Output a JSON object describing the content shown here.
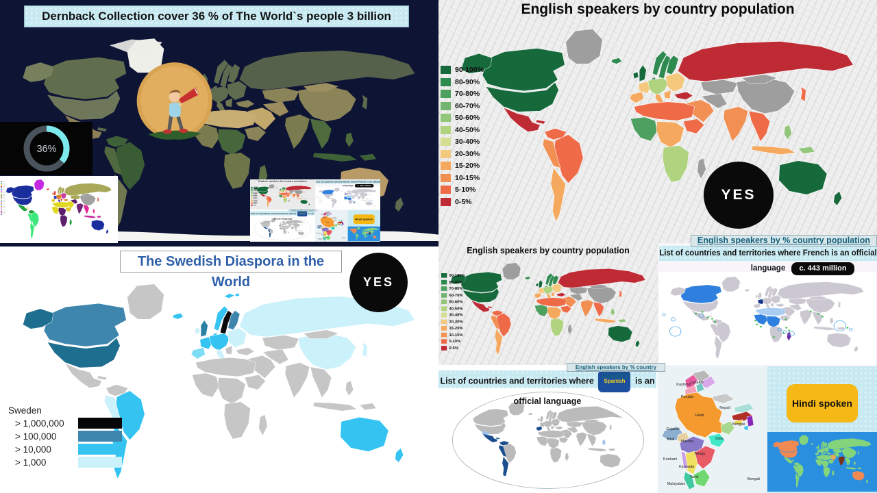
{
  "dernback": {
    "title": "Dernback Collection cover 36 % of The World`s people 3 billion",
    "donut_label": "36%",
    "donut_percent": 36
  },
  "swedish": {
    "title": "The Swedish Diaspora in the World",
    "yes": "YES",
    "legend_title": "Sweden",
    "legend": [
      {
        "label": "> 1,000,000",
        "color": "#060606"
      },
      {
        "label": "> 100,000",
        "color": "#3E86AE"
      },
      {
        "label": "> 10,000",
        "color": "#35C4F2"
      },
      {
        "label": "> 1,000",
        "color": "#CBF1FB"
      }
    ]
  },
  "english": {
    "title": "English speakers by country population",
    "yes": "YES",
    "link": "English speakers by % country population",
    "legend": [
      {
        "label": "90-100%",
        "color": "#15693B"
      },
      {
        "label": "80-90%",
        "color": "#2E8B50"
      },
      {
        "label": "70-80%",
        "color": "#4DA05F"
      },
      {
        "label": "60-70%",
        "color": "#73B56F"
      },
      {
        "label": "50-60%",
        "color": "#92C67B"
      },
      {
        "label": "40-50%",
        "color": "#AFD37F"
      },
      {
        "label": "30-40%",
        "color": "#D5DE92"
      },
      {
        "label": "20-30%",
        "color": "#F4C87D"
      },
      {
        "label": "15-20%",
        "color": "#F5A95E"
      },
      {
        "label": "10-15%",
        "color": "#F28F53"
      },
      {
        "label": "5-10%",
        "color": "#EF6A47"
      },
      {
        "label": "0-5%",
        "color": "#BF2B35"
      }
    ]
  },
  "english_small": {
    "title": "English speakers by country population",
    "link": "English speakers by % country population"
  },
  "french": {
    "title": "List of countries and territories where French is an official language",
    "badge": "c. 443 million"
  },
  "spanish": {
    "title_prefix": "List of countries and territories where",
    "chip": "Spanish",
    "title_suffix": "is an official language"
  },
  "india": {
    "labels": [
      "Ladakhi",
      "Kashmiri",
      "Punjabi",
      "Hindi",
      "Nepali",
      "Bengali",
      "Gujarati",
      "Bhili",
      "Marathi",
      "Odia",
      "Telugu",
      "Konkani",
      "Kannada",
      "Tamil",
      "Malayalam",
      "Bengali"
    ]
  },
  "hindi": {
    "label": "Hindi spoken"
  },
  "political_swatches": [
    "#7030A0",
    "#00B050",
    "#FFC000",
    "#C00000",
    "#2E3192",
    "#00B0F0",
    "#FF00FF",
    "#92D050",
    "#BF8F00",
    "#1F9E3C",
    "#E03C28",
    "#A8A858",
    "#3CE87C",
    "#C428E0",
    "#E08428",
    "#2838C8",
    "#E0C820",
    "#C83C9E",
    "#A0A0A0",
    "#702878",
    "#E02898",
    "#1B2E9E"
  ],
  "maps": {
    "satellite": {
      "stroke": "none",
      "default": "#5E6B4E",
      "regions": {
        "alaska": "#77805C",
        "canada": "#606E4E",
        "greenland": "#EFEFEA",
        "usa": "#6E775A",
        "mexico": "#8C7E57",
        "cuba": "#5E6B4E",
        "sa_north": "#3E6138",
        "brazil": "#3A5C35",
        "sa_west": "#50693F",
        "sa_south": "#707952",
        "iceland": "#D8D8D2",
        "iberia": "#6E7552",
        "italy": "#6E7552",
        "balkans": "#6E7552",
        "turkey": "#8C8459",
        "russia": "#55614A",
        "kazakhstan": "#8C8459",
        "middle_east": "#C2A86B",
        "iran": "#9C8C5E",
        "china": "#8C8459",
        "mongolia": "#9C9062",
        "india": "#7A7B4E",
        "se_asia": "#4E6B3E",
        "philippines": "#4E6B3E",
        "indonesia": "#3E6138",
        "png": "#3E6138",
        "north_africa": "#C9AE74",
        "west_africa": "#7A7B4E",
        "central_africa": "#47663B",
        "east_africa": "#8C8459",
        "south_africa": "#6E7548",
        "madagascar": "#5E7045",
        "australia": "#B89A66",
        "antarctica": "#F4F4F0"
      }
    },
    "swedish": {
      "ocean": "#FFFFFF",
      "default": "#C6C6C6",
      "stroke": "#FFFFFF",
      "regions": {
        "sweden": "#0A0A0A",
        "alaska": "#1E6E90",
        "usa": "#1E6E90",
        "canada": "#3E86AE",
        "uk": "#2A80A4",
        "finland": "#3E86AE",
        "norway": "#35C4F2",
        "denmark": "#35C4F2",
        "iceland": "#35C4F2",
        "france": "#35C4F2",
        "central_europe": "#35C4F2",
        "iberia": "#7FDCF6",
        "italy": "#CBF1FB",
        "east_europe": "#CBF1FB",
        "russia": "#CBF1FB",
        "china": "#CBF1FB",
        "japan": "#CBF1FB",
        "ireland": "#CBF1FB",
        "brazil": "#35C4F2",
        "sa_south": "#35C4F2",
        "sa_west": "#CBF1FB",
        "australia": "#35C4F2",
        "new_zealand": "#35C4F2"
      }
    },
    "english": {
      "default": "#9E9E9E",
      "stroke": "#FFFFFF",
      "regions": {
        "canada": "#15693B",
        "usa": "#15693B",
        "alaska": "#15693B",
        "uk": "#15693B",
        "ireland": "#15693B",
        "australia": "#15693B",
        "new_zealand": "#15693B",
        "iceland": "#2E8B50",
        "norway": "#2E8B50",
        "sweden": "#2E8B50",
        "denmark": "#2E8B50",
        "finland": "#2E8B50",
        "central_europe": "#AFD37F",
        "france": "#F4C87D",
        "iberia": "#F5A95E",
        "italy": "#F5A95E",
        "east_europe": "#F4C87D",
        "balkans": "#F5A95E",
        "turkey": "#BF2B35",
        "russia": "#BF2B35",
        "japan": "#EF6A47",
        "india": "#F28F53",
        "se_asia": "#EF6A47",
        "philippines": "#92C67B",
        "indonesia": "#F5A95E",
        "png": "#92C67B",
        "middle_east": "#F28F53",
        "north_africa": "#EF6A47",
        "west_africa": "#4DA05F",
        "central_africa": "#F5A95E",
        "east_africa": "#EF6A47",
        "south_africa": "#AFD37F",
        "mexico": "#BF2B35",
        "cuba": "#BF2B35",
        "sa_north": "#EF6A47",
        "brazil": "#EF6A47",
        "sa_west": "#F28F53",
        "sa_south": "#F5A95E"
      }
    },
    "french": {
      "ocean": "#FFFFFF",
      "default": "#CCC8D2",
      "stroke": "#FFFFFF",
      "regions": {
        "canada": "#2F7FDE",
        "france": "#14388C",
        "north_africa": "#A9CCF2",
        "west_africa": "#2F7FDE",
        "central_africa": "#2F7FDE",
        "madagascar": "#6B2FA0"
      }
    },
    "spanish": {
      "frame": "ellipse",
      "default": "#BBBBBB",
      "stroke": "#FFFFFF",
      "regions": {
        "iberia": "#1C4E8E",
        "mexico": "#1C4E8E",
        "cuba": "#1C4E8E",
        "sa_north": "#1C4E8E",
        "sa_west": "#1C4E8E",
        "sa_south": "#1C4E8E",
        "philippines": "#9FC2EA"
      }
    },
    "hindi_world": {
      "ocean": "#2B8FE0",
      "default": "#84D47C",
      "stroke": "none",
      "regions": {
        "usa": "#F08A52",
        "canada": "#F08A52",
        "alaska": "#F08A52",
        "australia": "#F08A52",
        "india": "#7A2F16",
        "middle_east": "#E8A85A"
      }
    },
    "political": {
      "ocean": "#FFFFFF",
      "default": "#C8C8C8",
      "stroke": "#FFFFFF",
      "regions": {
        "alaska": "#1B2E9E",
        "canada": "#1B2E9E",
        "usa": "#1B2E9E",
        "greenland": "#C428E0",
        "mexico": "#1F9E3C",
        "cuba": "#E0C820",
        "sa_north": "#1F9E3C",
        "brazil": "#3CE87C",
        "sa_west": "#3CE87C",
        "sa_south": "#3CE87C",
        "iceland": "#E03C28",
        "ireland": "#E03C28",
        "uk": "#E03C28",
        "norway": "#A8A858",
        "sweden": "#A8A858",
        "finland": "#A8A858",
        "denmark": "#E08428",
        "france": "#2838C8",
        "iberia": "#E0C820",
        "central_europe": "#E08428",
        "italy": "#3C28C8",
        "east_europe": "#C83C9E",
        "balkans": "#E03C28",
        "turkey": "#E08428",
        "russia": "#A8A858",
        "kazakhstan": "#A8A858",
        "middle_east": "#E0D820",
        "iran": "#5E1E6E",
        "china": "#A0A0A0",
        "mongolia": "#A0A0A0",
        "india": "#702878",
        "se_asia": "#E02898",
        "japan": "#C83C28",
        "philippines": "#E02898",
        "indonesia": "#C8289E",
        "png": "#C8289E",
        "north_africa": "#E0D820",
        "west_africa": "#E0D820",
        "central_africa": "#5E1E6E",
        "east_africa": "#E0C820",
        "south_africa": "#5E1E6E",
        "madagascar": "#1F9E3C",
        "australia": "#1B2E9E",
        "new_zealand": "#1B2E9E"
      }
    }
  }
}
